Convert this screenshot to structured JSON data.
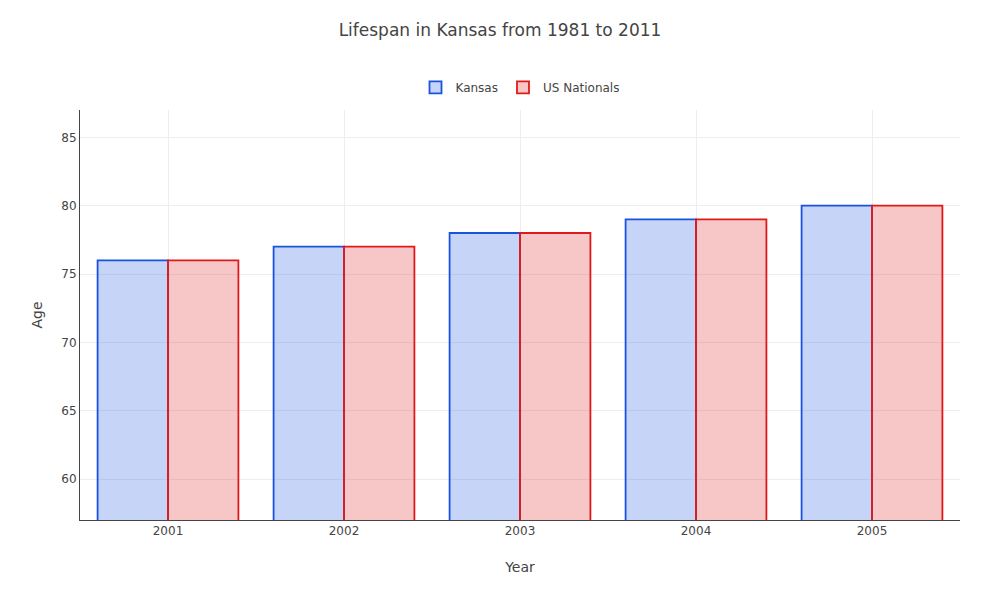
{
  "chart_data": {
    "type": "bar",
    "title": "Lifespan in Kansas from 1981 to 2011",
    "xlabel": "Year",
    "ylabel": "Age",
    "categories": [
      "2001",
      "2002",
      "2003",
      "2004",
      "2005"
    ],
    "series": [
      {
        "name": "Kansas",
        "color": "#1a52e0",
        "values": [
          76,
          77,
          78,
          79,
          80
        ]
      },
      {
        "name": "US Nationals",
        "color": "#e01a1a",
        "values": [
          76,
          77,
          78,
          79,
          80
        ]
      }
    ],
    "ylim": [
      57,
      87
    ],
    "yticks": [
      60,
      65,
      70,
      75,
      80,
      85
    ],
    "grid": true,
    "legend": "upper center"
  }
}
